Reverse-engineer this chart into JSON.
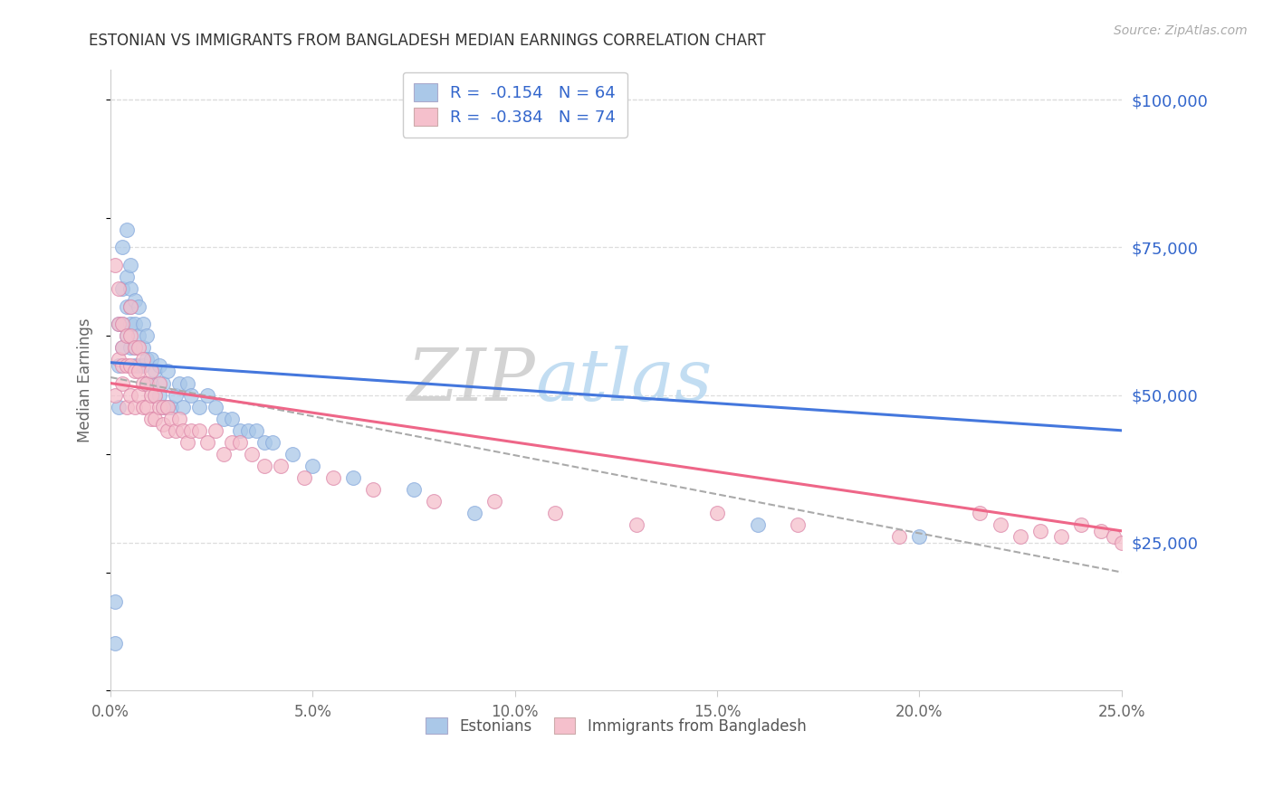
{
  "title": "ESTONIAN VS IMMIGRANTS FROM BANGLADESH MEDIAN EARNINGS CORRELATION CHART",
  "source": "Source: ZipAtlas.com",
  "ylabel": "Median Earnings",
  "xmin": 0.0,
  "xmax": 0.25,
  "ymin": 0,
  "ymax": 105000,
  "yticks": [
    25000,
    50000,
    75000,
    100000
  ],
  "ytick_labels": [
    "$25,000",
    "$50,000",
    "$75,000",
    "$100,000"
  ],
  "watermark_zip": "ZIP",
  "watermark_atlas": "atlas",
  "series1_label": "Estonians",
  "series1_R": "-0.154",
  "series1_N": "64",
  "series1_color": "#aac8e8",
  "series1_line_color": "#4477dd",
  "series2_label": "Immigrants from Bangladesh",
  "series2_R": "-0.384",
  "series2_N": "74",
  "series2_color": "#f5c0cc",
  "series2_line_color": "#ee6688",
  "blue_text_color": "#3366cc",
  "bg_color": "#ffffff",
  "grid_color": "#dddddd",
  "estonians_x": [
    0.001,
    0.001,
    0.002,
    0.002,
    0.002,
    0.003,
    0.003,
    0.003,
    0.003,
    0.004,
    0.004,
    0.004,
    0.004,
    0.005,
    0.005,
    0.005,
    0.005,
    0.005,
    0.006,
    0.006,
    0.006,
    0.006,
    0.007,
    0.007,
    0.007,
    0.008,
    0.008,
    0.008,
    0.009,
    0.009,
    0.009,
    0.01,
    0.01,
    0.011,
    0.011,
    0.012,
    0.012,
    0.013,
    0.013,
    0.014,
    0.014,
    0.015,
    0.016,
    0.017,
    0.018,
    0.019,
    0.02,
    0.022,
    0.024,
    0.026,
    0.028,
    0.03,
    0.032,
    0.034,
    0.036,
    0.038,
    0.04,
    0.045,
    0.05,
    0.06,
    0.075,
    0.09,
    0.16,
    0.2
  ],
  "estonians_y": [
    15000,
    8000,
    48000,
    55000,
    62000,
    58000,
    62000,
    68000,
    75000,
    60000,
    65000,
    70000,
    78000,
    58000,
    62000,
    65000,
    68000,
    72000,
    55000,
    58000,
    62000,
    66000,
    55000,
    60000,
    65000,
    55000,
    58000,
    62000,
    52000,
    56000,
    60000,
    52000,
    56000,
    50000,
    54000,
    50000,
    55000,
    48000,
    52000,
    48000,
    54000,
    48000,
    50000,
    52000,
    48000,
    52000,
    50000,
    48000,
    50000,
    48000,
    46000,
    46000,
    44000,
    44000,
    44000,
    42000,
    42000,
    40000,
    38000,
    36000,
    34000,
    30000,
    28000,
    26000
  ],
  "bangladesh_x": [
    0.001,
    0.001,
    0.002,
    0.002,
    0.002,
    0.003,
    0.003,
    0.003,
    0.003,
    0.004,
    0.004,
    0.004,
    0.005,
    0.005,
    0.005,
    0.005,
    0.006,
    0.006,
    0.006,
    0.007,
    0.007,
    0.007,
    0.008,
    0.008,
    0.008,
    0.009,
    0.009,
    0.01,
    0.01,
    0.01,
    0.011,
    0.011,
    0.012,
    0.012,
    0.013,
    0.013,
    0.014,
    0.014,
    0.015,
    0.016,
    0.017,
    0.018,
    0.019,
    0.02,
    0.022,
    0.024,
    0.026,
    0.028,
    0.03,
    0.032,
    0.035,
    0.038,
    0.042,
    0.048,
    0.055,
    0.065,
    0.08,
    0.095,
    0.11,
    0.13,
    0.15,
    0.17,
    0.195,
    0.215,
    0.22,
    0.225,
    0.23,
    0.235,
    0.24,
    0.245,
    0.248,
    0.25,
    0.252,
    0.255
  ],
  "bangladesh_y": [
    72000,
    50000,
    62000,
    56000,
    68000,
    52000,
    58000,
    62000,
    55000,
    48000,
    55000,
    60000,
    50000,
    55000,
    60000,
    65000,
    48000,
    54000,
    58000,
    50000,
    54000,
    58000,
    48000,
    52000,
    56000,
    48000,
    52000,
    46000,
    50000,
    54000,
    46000,
    50000,
    48000,
    52000,
    45000,
    48000,
    44000,
    48000,
    46000,
    44000,
    46000,
    44000,
    42000,
    44000,
    44000,
    42000,
    44000,
    40000,
    42000,
    42000,
    40000,
    38000,
    38000,
    36000,
    36000,
    34000,
    32000,
    32000,
    30000,
    28000,
    30000,
    28000,
    26000,
    30000,
    28000,
    26000,
    27000,
    26000,
    28000,
    27000,
    26000,
    25000,
    24000,
    23000
  ]
}
